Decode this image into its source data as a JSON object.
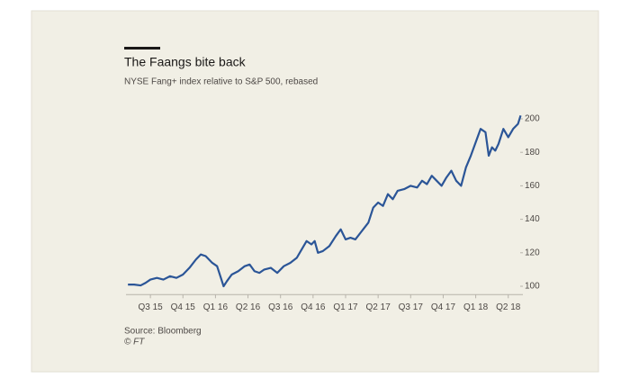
{
  "chart_data": {
    "type": "line",
    "title": "The Faangs bite back",
    "subtitle": "NYSE Fang+ index relative to S&P 500, rebased",
    "source": "Source: Bloomberg",
    "copyright": "© FT",
    "x": [
      -0.69,
      -0.5,
      -0.3,
      -0.15,
      0,
      0.2,
      0.4,
      0.6,
      0.8,
      1.0,
      1.2,
      1.4,
      1.55,
      1.7,
      1.9,
      2.05,
      2.15,
      2.25,
      2.35,
      2.5,
      2.7,
      2.9,
      3.05,
      3.2,
      3.35,
      3.5,
      3.7,
      3.9,
      4.1,
      4.3,
      4.5,
      4.65,
      4.8,
      4.95,
      5.05,
      5.15,
      5.3,
      5.5,
      5.7,
      5.85,
      6.0,
      6.15,
      6.3,
      6.5,
      6.7,
      6.85,
      7.0,
      7.15,
      7.3,
      7.45,
      7.6,
      7.8,
      8.0,
      8.2,
      8.35,
      8.5,
      8.65,
      8.8,
      8.95,
      9.1,
      9.25,
      9.4,
      9.55,
      9.7,
      9.85,
      10.0,
      10.15,
      10.3,
      10.4,
      10.5,
      10.6,
      10.7,
      10.85,
      11.0,
      11.15,
      11.3,
      11.38
    ],
    "series": [
      {
        "name": "NYSE Fang+ relative to S&P 500",
        "color": "#2b5597",
        "values": [
          101,
          101,
          100.5,
          102,
          104,
          105,
          104,
          106,
          105,
          107,
          111,
          116,
          119,
          118,
          114,
          112,
          106,
          100,
          103,
          107,
          109,
          112,
          113,
          109,
          108,
          110,
          111,
          108,
          112,
          114,
          117,
          122,
          127,
          125,
          127,
          120,
          121,
          124,
          130,
          134,
          128,
          129,
          128,
          133,
          138,
          147,
          150,
          148,
          155,
          152,
          157,
          158,
          160,
          159,
          163,
          161,
          166,
          163,
          160,
          165,
          169,
          163,
          160,
          171,
          178,
          186,
          194,
          192,
          178,
          183,
          181,
          185,
          194,
          189,
          194,
          197,
          202
        ]
      }
    ],
    "xlim": [
      -0.75,
      11.45
    ],
    "xticks": [
      {
        "value": 0,
        "label": "Q3 15"
      },
      {
        "value": 1,
        "label": "Q4 15"
      },
      {
        "value": 2,
        "label": "Q1 16"
      },
      {
        "value": 3,
        "label": "Q2 16"
      },
      {
        "value": 4,
        "label": "Q3 16"
      },
      {
        "value": 5,
        "label": "Q4 16"
      },
      {
        "value": 6,
        "label": "Q1 17"
      },
      {
        "value": 7,
        "label": "Q2 17"
      },
      {
        "value": 8,
        "label": "Q3 17"
      },
      {
        "value": 9,
        "label": "Q4 17"
      },
      {
        "value": 10,
        "label": "Q1 18"
      },
      {
        "value": 11,
        "label": "Q2 18"
      }
    ],
    "ylim": [
      95,
      205
    ],
    "yticks": [
      100,
      120,
      140,
      160,
      180,
      200
    ]
  }
}
